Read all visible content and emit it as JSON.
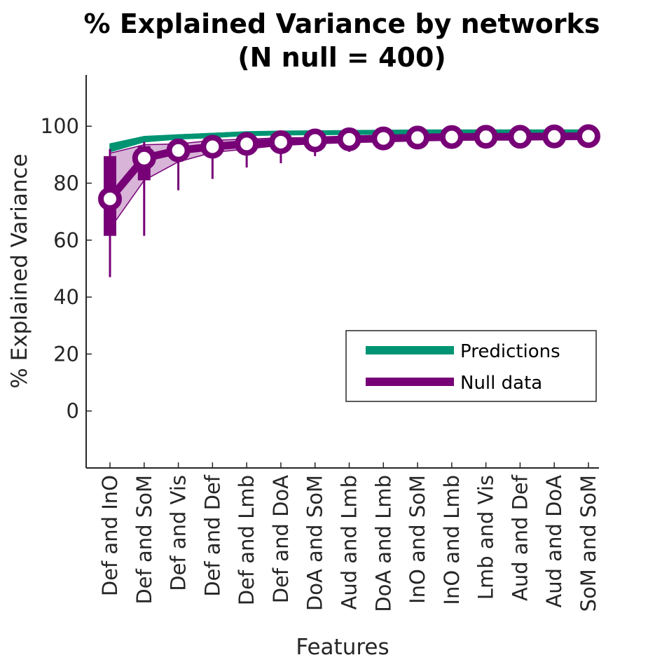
{
  "chart_data": {
    "type": "line",
    "title": "% Explained Variance by networks",
    "subtitle": "(N null = 400)",
    "xlabel": "Features",
    "ylabel": "% Explained Variance",
    "categories": [
      "Def and InO",
      "Def and SoM",
      "Def and Vis",
      "Def and Def",
      "Def and Lmb",
      "Def and DoA",
      "DoA and SoM",
      "Aud and Lmb",
      "DoA and Lmb",
      "InO and SoM",
      "InO and Lmb",
      "Lmb and Vis",
      "Aud and Def",
      "Aud and DoA",
      "SoM and SoM"
    ],
    "ylim": [
      -20,
      118
    ],
    "yticks": [
      0,
      20,
      40,
      60,
      80,
      100
    ],
    "grid": false,
    "legend_position": "lower-right",
    "colors": {
      "predictions": "#009473",
      "null": "#770077",
      "null_band": "#d8b4d8"
    },
    "series": [
      {
        "name": "Predictions",
        "values": [
          92.5,
          95.5,
          96.3,
          96.8,
          97.4,
          97.6,
          97.7,
          97.8,
          97.9,
          98.0,
          98.0,
          98.0,
          98.0,
          98.0,
          98.0
        ],
        "band_upper": [
          93.8,
          96.4,
          97.0,
          97.5,
          98.0,
          98.1,
          98.2,
          98.2,
          98.3,
          98.3,
          98.3,
          98.3,
          98.3,
          98.3,
          98.3
        ],
        "band_lower": [
          91.0,
          94.5,
          95.5,
          96.0,
          96.8,
          97.0,
          97.2,
          97.3,
          97.4,
          97.5,
          97.6,
          97.6,
          97.6,
          97.6,
          97.6
        ]
      },
      {
        "name": "Null data",
        "values": [
          74.5,
          88.8,
          91.5,
          92.8,
          93.8,
          94.4,
          95.0,
          95.4,
          95.7,
          96.0,
          96.2,
          96.3,
          96.3,
          96.4,
          96.5
        ],
        "band_upper": [
          90.5,
          93.5,
          93.8,
          95.0,
          95.5,
          95.9,
          96.0,
          96.3,
          96.4,
          96.5,
          96.6,
          96.7,
          96.7,
          96.8,
          96.8
        ],
        "band_lower": [
          64.0,
          81.0,
          87.5,
          90.8,
          92.0,
          93.3,
          94.3,
          95.0,
          95.3,
          95.6,
          95.8,
          96.0,
          96.1,
          96.2,
          96.2
        ],
        "q1": [
          61.5,
          81.0,
          88.5,
          90.5,
          92.0,
          93.0,
          94.0,
          94.5,
          95.0,
          95.4,
          95.7,
          95.9,
          96.0,
          96.1,
          96.2
        ],
        "q3": [
          89.5,
          93.0,
          93.8,
          94.5,
          95.2,
          95.7,
          96.0,
          96.2,
          96.4,
          96.5,
          96.6,
          96.7,
          96.8,
          96.8,
          96.9
        ],
        "whisker_low": [
          47.0,
          61.5,
          77.5,
          81.5,
          85.5,
          87.0,
          89.5,
          91.0,
          92.5,
          93.5,
          94.0,
          94.5,
          95.0,
          95.2,
          95.5
        ],
        "whisker_high": [
          92.0,
          94.5,
          95.5,
          96.0,
          96.5,
          96.8,
          97.0,
          97.1,
          97.2,
          97.3,
          97.3,
          97.4,
          97.4,
          97.4,
          97.5
        ]
      }
    ]
  }
}
